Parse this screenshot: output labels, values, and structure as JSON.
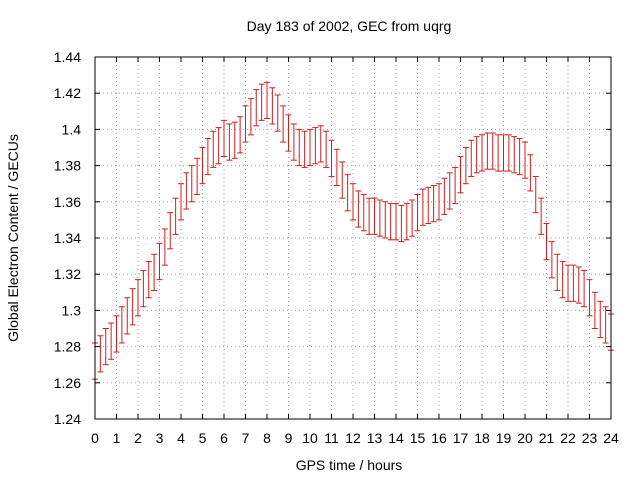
{
  "chart_data": {
    "type": "errorbar",
    "title": "Day 183 of 2002, GEC from uqrg",
    "xlabel": "GPS time / hours",
    "ylabel": "Global Electron Content / GECUs",
    "xlim": [
      0,
      24
    ],
    "ylim": [
      1.24,
      1.44
    ],
    "xticks": [
      0,
      1,
      2,
      3,
      4,
      5,
      6,
      7,
      8,
      9,
      10,
      11,
      12,
      13,
      14,
      15,
      16,
      17,
      18,
      19,
      20,
      21,
      22,
      23,
      24
    ],
    "yticks": [
      1.24,
      1.26,
      1.28,
      1.3,
      1.32,
      1.34,
      1.36,
      1.38,
      1.4,
      1.42,
      1.44
    ],
    "ytick_labels": [
      "1.24",
      "1.26",
      "1.28",
      "1.3",
      "1.32",
      "1.34",
      "1.36",
      "1.38",
      "1.4",
      "1.42",
      "1.44"
    ],
    "grid": true,
    "color": "#cc2020",
    "error": 0.01,
    "series": [
      {
        "x": [
          0,
          0.25,
          0.5,
          0.75,
          1,
          1.25,
          1.5,
          1.75,
          2,
          2.25,
          2.5,
          2.75,
          3,
          3.25,
          3.5,
          3.75,
          4,
          4.25,
          4.5,
          4.75,
          5,
          5.25,
          5.5,
          5.75,
          6,
          6.25,
          6.5,
          6.75,
          7,
          7.25,
          7.5,
          7.75,
          8,
          8.25,
          8.5,
          8.75,
          9,
          9.25,
          9.5,
          9.75,
          10,
          10.25,
          10.5,
          10.75,
          11,
          11.25,
          11.5,
          11.75,
          12,
          12.25,
          12.5,
          12.75,
          13,
          13.25,
          13.5,
          13.75,
          14,
          14.25,
          14.5,
          14.75,
          15,
          15.25,
          15.5,
          15.75,
          16,
          16.25,
          16.5,
          16.75,
          17,
          17.25,
          17.5,
          17.75,
          18,
          18.25,
          18.5,
          18.75,
          19,
          19.25,
          19.5,
          19.75,
          20,
          20.25,
          20.5,
          20.75,
          21,
          21.25,
          21.5,
          21.75,
          22,
          22.25,
          22.5,
          22.75,
          23,
          23.25,
          23.5,
          23.75,
          24
        ],
        "y": [
          1.272,
          1.276,
          1.28,
          1.283,
          1.287,
          1.292,
          1.297,
          1.302,
          1.307,
          1.312,
          1.317,
          1.321,
          1.327,
          1.335,
          1.344,
          1.352,
          1.36,
          1.366,
          1.37,
          1.374,
          1.38,
          1.385,
          1.389,
          1.391,
          1.395,
          1.393,
          1.394,
          1.397,
          1.403,
          1.407,
          1.412,
          1.415,
          1.416,
          1.413,
          1.409,
          1.403,
          1.398,
          1.393,
          1.39,
          1.389,
          1.39,
          1.391,
          1.392,
          1.389,
          1.384,
          1.379,
          1.372,
          1.365,
          1.36,
          1.356,
          1.354,
          1.352,
          1.352,
          1.351,
          1.35,
          1.349,
          1.349,
          1.348,
          1.349,
          1.351,
          1.354,
          1.357,
          1.358,
          1.359,
          1.36,
          1.363,
          1.366,
          1.369,
          1.375,
          1.38,
          1.384,
          1.386,
          1.387,
          1.388,
          1.388,
          1.387,
          1.387,
          1.387,
          1.386,
          1.385,
          1.383,
          1.376,
          1.364,
          1.352,
          1.338,
          1.328,
          1.321,
          1.317,
          1.315,
          1.315,
          1.314,
          1.312,
          1.307,
          1.3,
          1.295,
          1.292,
          1.288
        ]
      }
    ]
  }
}
